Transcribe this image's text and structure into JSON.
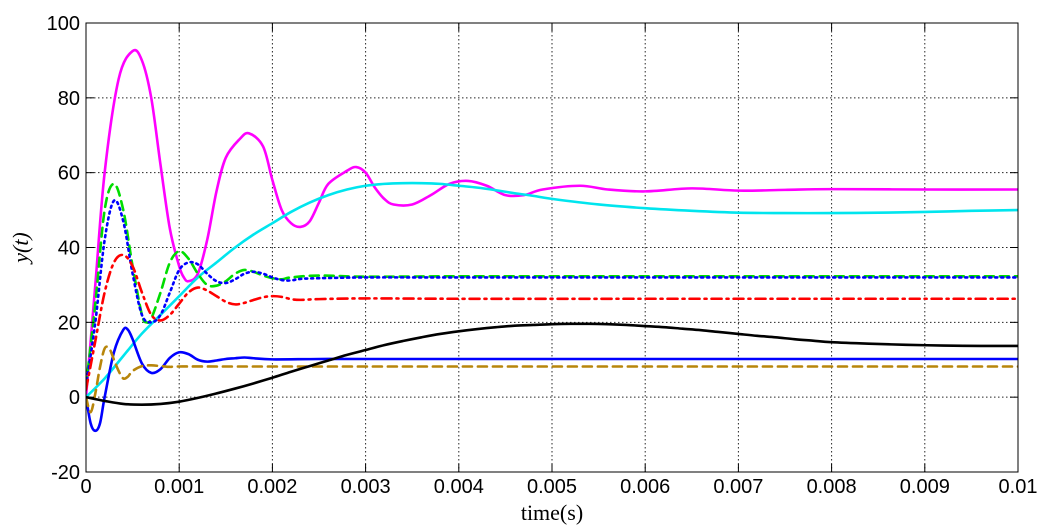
{
  "chart_data": {
    "type": "line",
    "title": "",
    "xlabel": "time(s)",
    "ylabel": "y(t)",
    "xlim": [
      0,
      0.01
    ],
    "ylim": [
      -20,
      100
    ],
    "grid": true,
    "x_ticks": [
      "0",
      "0.001",
      "0.002",
      "0.003",
      "0.004",
      "0.005",
      "0.006",
      "0.007",
      "0.008",
      "0.009",
      "0.01"
    ],
    "y_ticks": [
      "-20",
      "0",
      "20",
      "40",
      "60",
      "80",
      "100"
    ],
    "series": [
      {
        "color": "#ff00ff",
        "style": "solid",
        "points": [
          [
            0,
            0
          ],
          [
            0.0001,
            30
          ],
          [
            0.0002,
            60
          ],
          [
            0.00035,
            85
          ],
          [
            0.0005,
            92.5
          ],
          [
            0.0006,
            90
          ],
          [
            0.0007,
            80
          ],
          [
            0.0008,
            62
          ],
          [
            0.0009,
            45
          ],
          [
            0.001,
            35
          ],
          [
            0.00105,
            32
          ],
          [
            0.0011,
            31
          ],
          [
            0.0012,
            33
          ],
          [
            0.0013,
            42
          ],
          [
            0.0014,
            55
          ],
          [
            0.0015,
            64
          ],
          [
            0.00165,
            69
          ],
          [
            0.00175,
            70.5
          ],
          [
            0.0019,
            67
          ],
          [
            0.002,
            58
          ],
          [
            0.0021,
            50
          ],
          [
            0.0022,
            46.5
          ],
          [
            0.0023,
            45.5
          ],
          [
            0.0024,
            47
          ],
          [
            0.0025,
            52
          ],
          [
            0.0026,
            57
          ],
          [
            0.0028,
            60.5
          ],
          [
            0.0029,
            61.5
          ],
          [
            0.003,
            60
          ],
          [
            0.0031,
            56
          ],
          [
            0.0032,
            53
          ],
          [
            0.0033,
            51.5
          ],
          [
            0.0035,
            51.5
          ],
          [
            0.0037,
            54
          ],
          [
            0.0039,
            57
          ],
          [
            0.0041,
            57.8
          ],
          [
            0.0043,
            56.5
          ],
          [
            0.0045,
            54
          ],
          [
            0.0047,
            54
          ],
          [
            0.0049,
            55.5
          ],
          [
            0.0053,
            56.5
          ],
          [
            0.0056,
            55.5
          ],
          [
            0.006,
            55
          ],
          [
            0.0065,
            55.8
          ],
          [
            0.007,
            55.2
          ],
          [
            0.0075,
            55.4
          ],
          [
            0.008,
            55.6
          ],
          [
            0.009,
            55.5
          ],
          [
            0.01,
            55.5
          ]
        ]
      },
      {
        "color": "#00e5ee",
        "style": "solid",
        "points": [
          [
            0,
            0
          ],
          [
            0.0002,
            5
          ],
          [
            0.0004,
            11
          ],
          [
            0.0006,
            17
          ],
          [
            0.0008,
            22
          ],
          [
            0.001,
            27
          ],
          [
            0.0012,
            32
          ],
          [
            0.0014,
            36
          ],
          [
            0.0016,
            40
          ],
          [
            0.0018,
            43.5
          ],
          [
            0.002,
            46.5
          ],
          [
            0.0022,
            49.5
          ],
          [
            0.0024,
            52
          ],
          [
            0.0026,
            54
          ],
          [
            0.0028,
            55.5
          ],
          [
            0.003,
            56.5
          ],
          [
            0.0032,
            57
          ],
          [
            0.0034,
            57.2
          ],
          [
            0.0036,
            57.2
          ],
          [
            0.0038,
            57
          ],
          [
            0.004,
            56.5
          ],
          [
            0.0042,
            56
          ],
          [
            0.0044,
            55.3
          ],
          [
            0.0046,
            54.5
          ],
          [
            0.0048,
            53.8
          ],
          [
            0.005,
            53
          ],
          [
            0.0055,
            51.5
          ],
          [
            0.006,
            50.5
          ],
          [
            0.0065,
            49.8
          ],
          [
            0.007,
            49.3
          ],
          [
            0.0075,
            49.2
          ],
          [
            0.008,
            49.2
          ],
          [
            0.0085,
            49.3
          ],
          [
            0.009,
            49.5
          ],
          [
            0.0095,
            49.8
          ],
          [
            0.01,
            50
          ]
        ]
      },
      {
        "color": "#00dd00",
        "style": "dash",
        "points": [
          [
            0,
            3
          ],
          [
            0.0001,
            25
          ],
          [
            0.0002,
            50
          ],
          [
            0.0003,
            57
          ],
          [
            0.0004,
            50
          ],
          [
            0.0005,
            35
          ],
          [
            0.0006,
            22
          ],
          [
            0.00065,
            20
          ],
          [
            0.0007,
            21
          ],
          [
            0.0008,
            28
          ],
          [
            0.0009,
            36
          ],
          [
            0.001,
            39
          ],
          [
            0.0011,
            37
          ],
          [
            0.0012,
            33
          ],
          [
            0.0013,
            30
          ],
          [
            0.0014,
            29.8
          ],
          [
            0.0015,
            31
          ],
          [
            0.0016,
            33
          ],
          [
            0.0017,
            34
          ],
          [
            0.0018,
            33.5
          ],
          [
            0.0019,
            32.5
          ],
          [
            0.002,
            31.8
          ],
          [
            0.0021,
            31.5
          ],
          [
            0.0022,
            32
          ],
          [
            0.0025,
            32.5
          ],
          [
            0.003,
            32.2
          ],
          [
            0.004,
            32.3
          ],
          [
            0.006,
            32.3
          ],
          [
            0.01,
            32.3
          ]
        ]
      },
      {
        "color": "#0000ff",
        "style": "dot",
        "points": [
          [
            0,
            3
          ],
          [
            0.0001,
            20
          ],
          [
            0.0002,
            42
          ],
          [
            0.0003,
            52.5
          ],
          [
            0.0004,
            47
          ],
          [
            0.0005,
            33
          ],
          [
            0.0006,
            22
          ],
          [
            0.0007,
            20
          ],
          [
            0.0008,
            22
          ],
          [
            0.0009,
            28
          ],
          [
            0.001,
            34
          ],
          [
            0.0011,
            36
          ],
          [
            0.0012,
            35.5
          ],
          [
            0.0013,
            33
          ],
          [
            0.0014,
            31
          ],
          [
            0.0015,
            30.5
          ],
          [
            0.0016,
            31.5
          ],
          [
            0.0017,
            33
          ],
          [
            0.0018,
            33.5
          ],
          [
            0.0019,
            33
          ],
          [
            0.002,
            32
          ],
          [
            0.0021,
            31.3
          ],
          [
            0.0022,
            31.2
          ],
          [
            0.0023,
            31.6
          ],
          [
            0.0025,
            31.8
          ],
          [
            0.003,
            32
          ],
          [
            0.004,
            32
          ],
          [
            0.006,
            32
          ],
          [
            0.01,
            32
          ]
        ]
      },
      {
        "color": "#ff0000",
        "style": "dashdot",
        "points": [
          [
            0,
            2
          ],
          [
            0.0001,
            15
          ],
          [
            0.0002,
            28
          ],
          [
            0.0003,
            36
          ],
          [
            0.0004,
            38
          ],
          [
            0.0005,
            35
          ],
          [
            0.0006,
            28
          ],
          [
            0.0007,
            22
          ],
          [
            0.0008,
            20.5
          ],
          [
            0.0009,
            22
          ],
          [
            0.001,
            25
          ],
          [
            0.0011,
            28
          ],
          [
            0.0012,
            29.3
          ],
          [
            0.0013,
            28.5
          ],
          [
            0.0014,
            27
          ],
          [
            0.0015,
            25.5
          ],
          [
            0.0016,
            24.8
          ],
          [
            0.0017,
            25.2
          ],
          [
            0.0018,
            26
          ],
          [
            0.0019,
            26.7
          ],
          [
            0.002,
            27
          ],
          [
            0.0021,
            26.8
          ],
          [
            0.0022,
            26.2
          ],
          [
            0.0023,
            26
          ],
          [
            0.0025,
            26.2
          ],
          [
            0.003,
            26.4
          ],
          [
            0.004,
            26.3
          ],
          [
            0.006,
            26.3
          ],
          [
            0.01,
            26.3
          ]
        ]
      },
      {
        "color": "#0000ff",
        "style": "solid",
        "points": [
          [
            0,
            0
          ],
          [
            5e-05,
            -7
          ],
          [
            0.0001,
            -9
          ],
          [
            0.00015,
            -7
          ],
          [
            0.0002,
            0
          ],
          [
            0.0003,
            12
          ],
          [
            0.0004,
            18
          ],
          [
            0.00045,
            18
          ],
          [
            0.0005,
            15.5
          ],
          [
            0.0006,
            9
          ],
          [
            0.0007,
            6.5
          ],
          [
            0.0008,
            7.5
          ],
          [
            0.0009,
            10.5
          ],
          [
            0.001,
            12
          ],
          [
            0.0011,
            11.5
          ],
          [
            0.0012,
            10
          ],
          [
            0.0013,
            9.5
          ],
          [
            0.0014,
            9.8
          ],
          [
            0.0015,
            10.2
          ],
          [
            0.0016,
            10.4
          ],
          [
            0.0017,
            10.6
          ],
          [
            0.0018,
            10.4
          ],
          [
            0.002,
            10.1
          ],
          [
            0.0025,
            10.2
          ],
          [
            0.003,
            10.2
          ],
          [
            0.005,
            10.2
          ],
          [
            0.01,
            10.2
          ]
        ]
      },
      {
        "color": "#b8860b",
        "style": "dash",
        "points": [
          [
            0,
            0
          ],
          [
            5e-05,
            -4
          ],
          [
            0.0001,
            1
          ],
          [
            0.00015,
            8
          ],
          [
            0.0002,
            13
          ],
          [
            0.00025,
            13
          ],
          [
            0.0003,
            10
          ],
          [
            0.00035,
            7
          ],
          [
            0.0004,
            5
          ],
          [
            0.00045,
            5.5
          ],
          [
            0.0005,
            7
          ],
          [
            0.0006,
            8.3
          ],
          [
            0.0007,
            8.5
          ],
          [
            0.0008,
            8.3
          ],
          [
            0.0009,
            8.1
          ],
          [
            0.001,
            8.2
          ],
          [
            0.0015,
            8.2
          ],
          [
            0.003,
            8.2
          ],
          [
            0.006,
            8.2
          ],
          [
            0.01,
            8.2
          ]
        ]
      },
      {
        "color": "#000000",
        "style": "solid",
        "points": [
          [
            0,
            0
          ],
          [
            0.0002,
            -1
          ],
          [
            0.0004,
            -1.8
          ],
          [
            0.0006,
            -2
          ],
          [
            0.0008,
            -1.8
          ],
          [
            0.001,
            -1.2
          ],
          [
            0.0012,
            -0.2
          ],
          [
            0.0014,
            1
          ],
          [
            0.0016,
            2.3
          ],
          [
            0.0018,
            3.7
          ],
          [
            0.002,
            5.2
          ],
          [
            0.0022,
            6.8
          ],
          [
            0.0024,
            8.3
          ],
          [
            0.0026,
            9.8
          ],
          [
            0.0028,
            11.3
          ],
          [
            0.003,
            12.6
          ],
          [
            0.0032,
            13.9
          ],
          [
            0.0034,
            15
          ],
          [
            0.0036,
            16
          ],
          [
            0.0038,
            16.9
          ],
          [
            0.004,
            17.6
          ],
          [
            0.0042,
            18.2
          ],
          [
            0.0044,
            18.7
          ],
          [
            0.0046,
            19.1
          ],
          [
            0.0048,
            19.3
          ],
          [
            0.005,
            19.5
          ],
          [
            0.0052,
            19.6
          ],
          [
            0.0054,
            19.6
          ],
          [
            0.0056,
            19.5
          ],
          [
            0.0058,
            19.3
          ],
          [
            0.006,
            19
          ],
          [
            0.0062,
            18.7
          ],
          [
            0.0064,
            18.3
          ],
          [
            0.0066,
            17.9
          ],
          [
            0.0068,
            17.4
          ],
          [
            0.007,
            16.9
          ],
          [
            0.0072,
            16.4
          ],
          [
            0.0074,
            16
          ],
          [
            0.0076,
            15.5
          ],
          [
            0.0078,
            15.1
          ],
          [
            0.008,
            14.7
          ],
          [
            0.0084,
            14.3
          ],
          [
            0.0088,
            14
          ],
          [
            0.0092,
            13.8
          ],
          [
            0.0096,
            13.7
          ],
          [
            0.01,
            13.7
          ]
        ]
      }
    ]
  }
}
